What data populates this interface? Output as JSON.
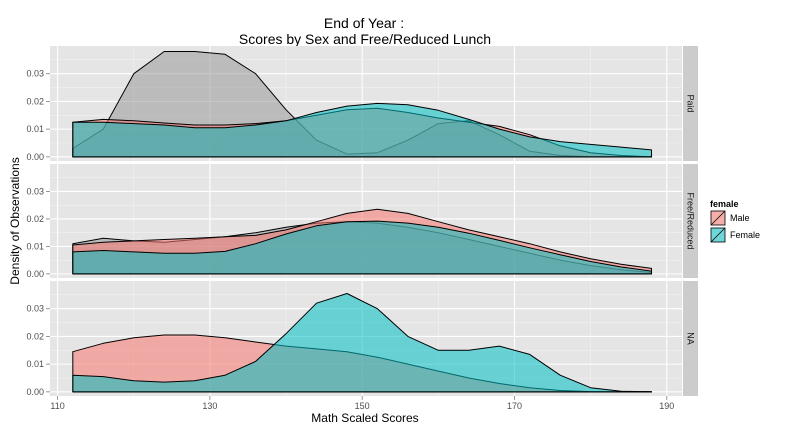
{
  "chart_data": {
    "type": "area",
    "subtype": "faceted density plot",
    "title": "End of Year :",
    "subtitle": "Scores by Sex and Free/Reduced Lunch",
    "xlabel": "Math Scaled Scores",
    "ylabel": "Density of Observations",
    "xlim": [
      109,
      192
    ],
    "ylim": [
      -0.0015,
      0.04
    ],
    "x_ticks": [
      110,
      130,
      150,
      170,
      190
    ],
    "y_ticks": [
      0.0,
      0.01,
      0.02,
      0.03
    ],
    "y_tick_labels": [
      "0.00",
      "0.01",
      "0.02",
      "0.03"
    ],
    "grid": true,
    "legend": {
      "title": "female",
      "position": "right",
      "entries": [
        {
          "label": "Male",
          "color": "#F8766D"
        },
        {
          "label": "Female",
          "color": "#00BFC4"
        }
      ]
    },
    "background_color": "#E5E5E5",
    "strip_color": "#CCCCCC",
    "unlabeled_group_color": "#999999",
    "facets": [
      {
        "label": "Paid",
        "series": [
          {
            "name": "",
            "color": "#999999",
            "x": [
              112,
              116,
              120,
              124,
              128,
              132,
              136,
              140,
              144,
              148,
              152,
              156,
              160,
              164,
              168,
              172,
              176,
              180,
              184,
              188
            ],
            "y": [
              0.003,
              0.01,
              0.03,
              0.038,
              0.038,
              0.037,
              0.03,
              0.017,
              0.006,
              0.001,
              0.0015,
              0.006,
              0.012,
              0.013,
              0.008,
              0.002,
              0.0005,
              0,
              0,
              0
            ]
          },
          {
            "name": "Male",
            "color": "#F8766D",
            "x": [
              112,
              116,
              120,
              124,
              128,
              132,
              136,
              140,
              144,
              148,
              152,
              156,
              160,
              164,
              168,
              172,
              176,
              180,
              184,
              188
            ],
            "y": [
              0.0125,
              0.0135,
              0.013,
              0.0122,
              0.0115,
              0.0115,
              0.012,
              0.013,
              0.015,
              0.017,
              0.0175,
              0.016,
              0.014,
              0.0125,
              0.011,
              0.008,
              0.004,
              0.0015,
              0.0005,
              0
            ]
          },
          {
            "name": "Female",
            "color": "#00BFC4",
            "x": [
              112,
              116,
              120,
              124,
              128,
              132,
              136,
              140,
              144,
              148,
              152,
              156,
              160,
              164,
              168,
              172,
              176,
              180,
              184,
              188
            ],
            "y": [
              0.0125,
              0.0125,
              0.012,
              0.0115,
              0.0105,
              0.0105,
              0.0115,
              0.013,
              0.016,
              0.0183,
              0.0193,
              0.0188,
              0.0168,
              0.0135,
              0.01,
              0.0072,
              0.0055,
              0.0045,
              0.0035,
              0.0025
            ]
          }
        ]
      },
      {
        "label": "Free/Reduced",
        "series": [
          {
            "name": "",
            "color": "#999999",
            "x": [
              112,
              116,
              120,
              124,
              128,
              132,
              136,
              140,
              144,
              148,
              152,
              156,
              160,
              164,
              168,
              172,
              176,
              180,
              184,
              188
            ],
            "y": [
              0.011,
              0.013,
              0.012,
              0.0115,
              0.0125,
              0.0135,
              0.015,
              0.017,
              0.0185,
              0.019,
              0.0185,
              0.017,
              0.015,
              0.0125,
              0.01,
              0.0075,
              0.005,
              0.003,
              0.0015,
              0.0005
            ]
          },
          {
            "name": "Male",
            "color": "#F8766D",
            "x": [
              112,
              116,
              120,
              124,
              128,
              132,
              136,
              140,
              144,
              148,
              152,
              156,
              160,
              164,
              168,
              172,
              176,
              180,
              184,
              188
            ],
            "y": [
              0.0105,
              0.0115,
              0.012,
              0.0125,
              0.013,
              0.0135,
              0.014,
              0.016,
              0.019,
              0.022,
              0.0235,
              0.022,
              0.019,
              0.016,
              0.0135,
              0.011,
              0.008,
              0.0055,
              0.0035,
              0.002
            ]
          },
          {
            "name": "Female",
            "color": "#00BFC4",
            "x": [
              112,
              116,
              120,
              124,
              128,
              132,
              136,
              140,
              144,
              148,
              152,
              156,
              160,
              164,
              168,
              172,
              176,
              180,
              184,
              188
            ],
            "y": [
              0.008,
              0.0085,
              0.008,
              0.0075,
              0.0075,
              0.0082,
              0.011,
              0.0145,
              0.0175,
              0.019,
              0.0192,
              0.0185,
              0.017,
              0.0148,
              0.0122,
              0.0095,
              0.007,
              0.0045,
              0.0025,
              0.001
            ]
          }
        ]
      },
      {
        "label": "NA",
        "series": [
          {
            "name": "",
            "color": "#999999",
            "x": [
              112,
              188
            ],
            "y": [
              0,
              0
            ]
          },
          {
            "name": "Male",
            "color": "#F8766D",
            "x": [
              112,
              116,
              120,
              124,
              128,
              132,
              136,
              140,
              144,
              148,
              152,
              156,
              160,
              164,
              168,
              172,
              176,
              180,
              184,
              188
            ],
            "y": [
              0.0145,
              0.0175,
              0.0195,
              0.0205,
              0.0205,
              0.0195,
              0.018,
              0.0165,
              0.0155,
              0.0145,
              0.0125,
              0.01,
              0.0075,
              0.005,
              0.003,
              0.0015,
              0.0005,
              0.0001,
              0,
              0
            ]
          },
          {
            "name": "Female",
            "color": "#00BFC4",
            "x": [
              112,
              116,
              120,
              124,
              128,
              132,
              136,
              140,
              144,
              148,
              152,
              156,
              160,
              164,
              168,
              172,
              176,
              180,
              184,
              188
            ],
            "y": [
              0.006,
              0.0055,
              0.004,
              0.0035,
              0.004,
              0.006,
              0.011,
              0.021,
              0.032,
              0.0355,
              0.03,
              0.02,
              0.015,
              0.015,
              0.0165,
              0.0135,
              0.006,
              0.0015,
              0.0002,
              0
            ]
          }
        ]
      }
    ]
  }
}
